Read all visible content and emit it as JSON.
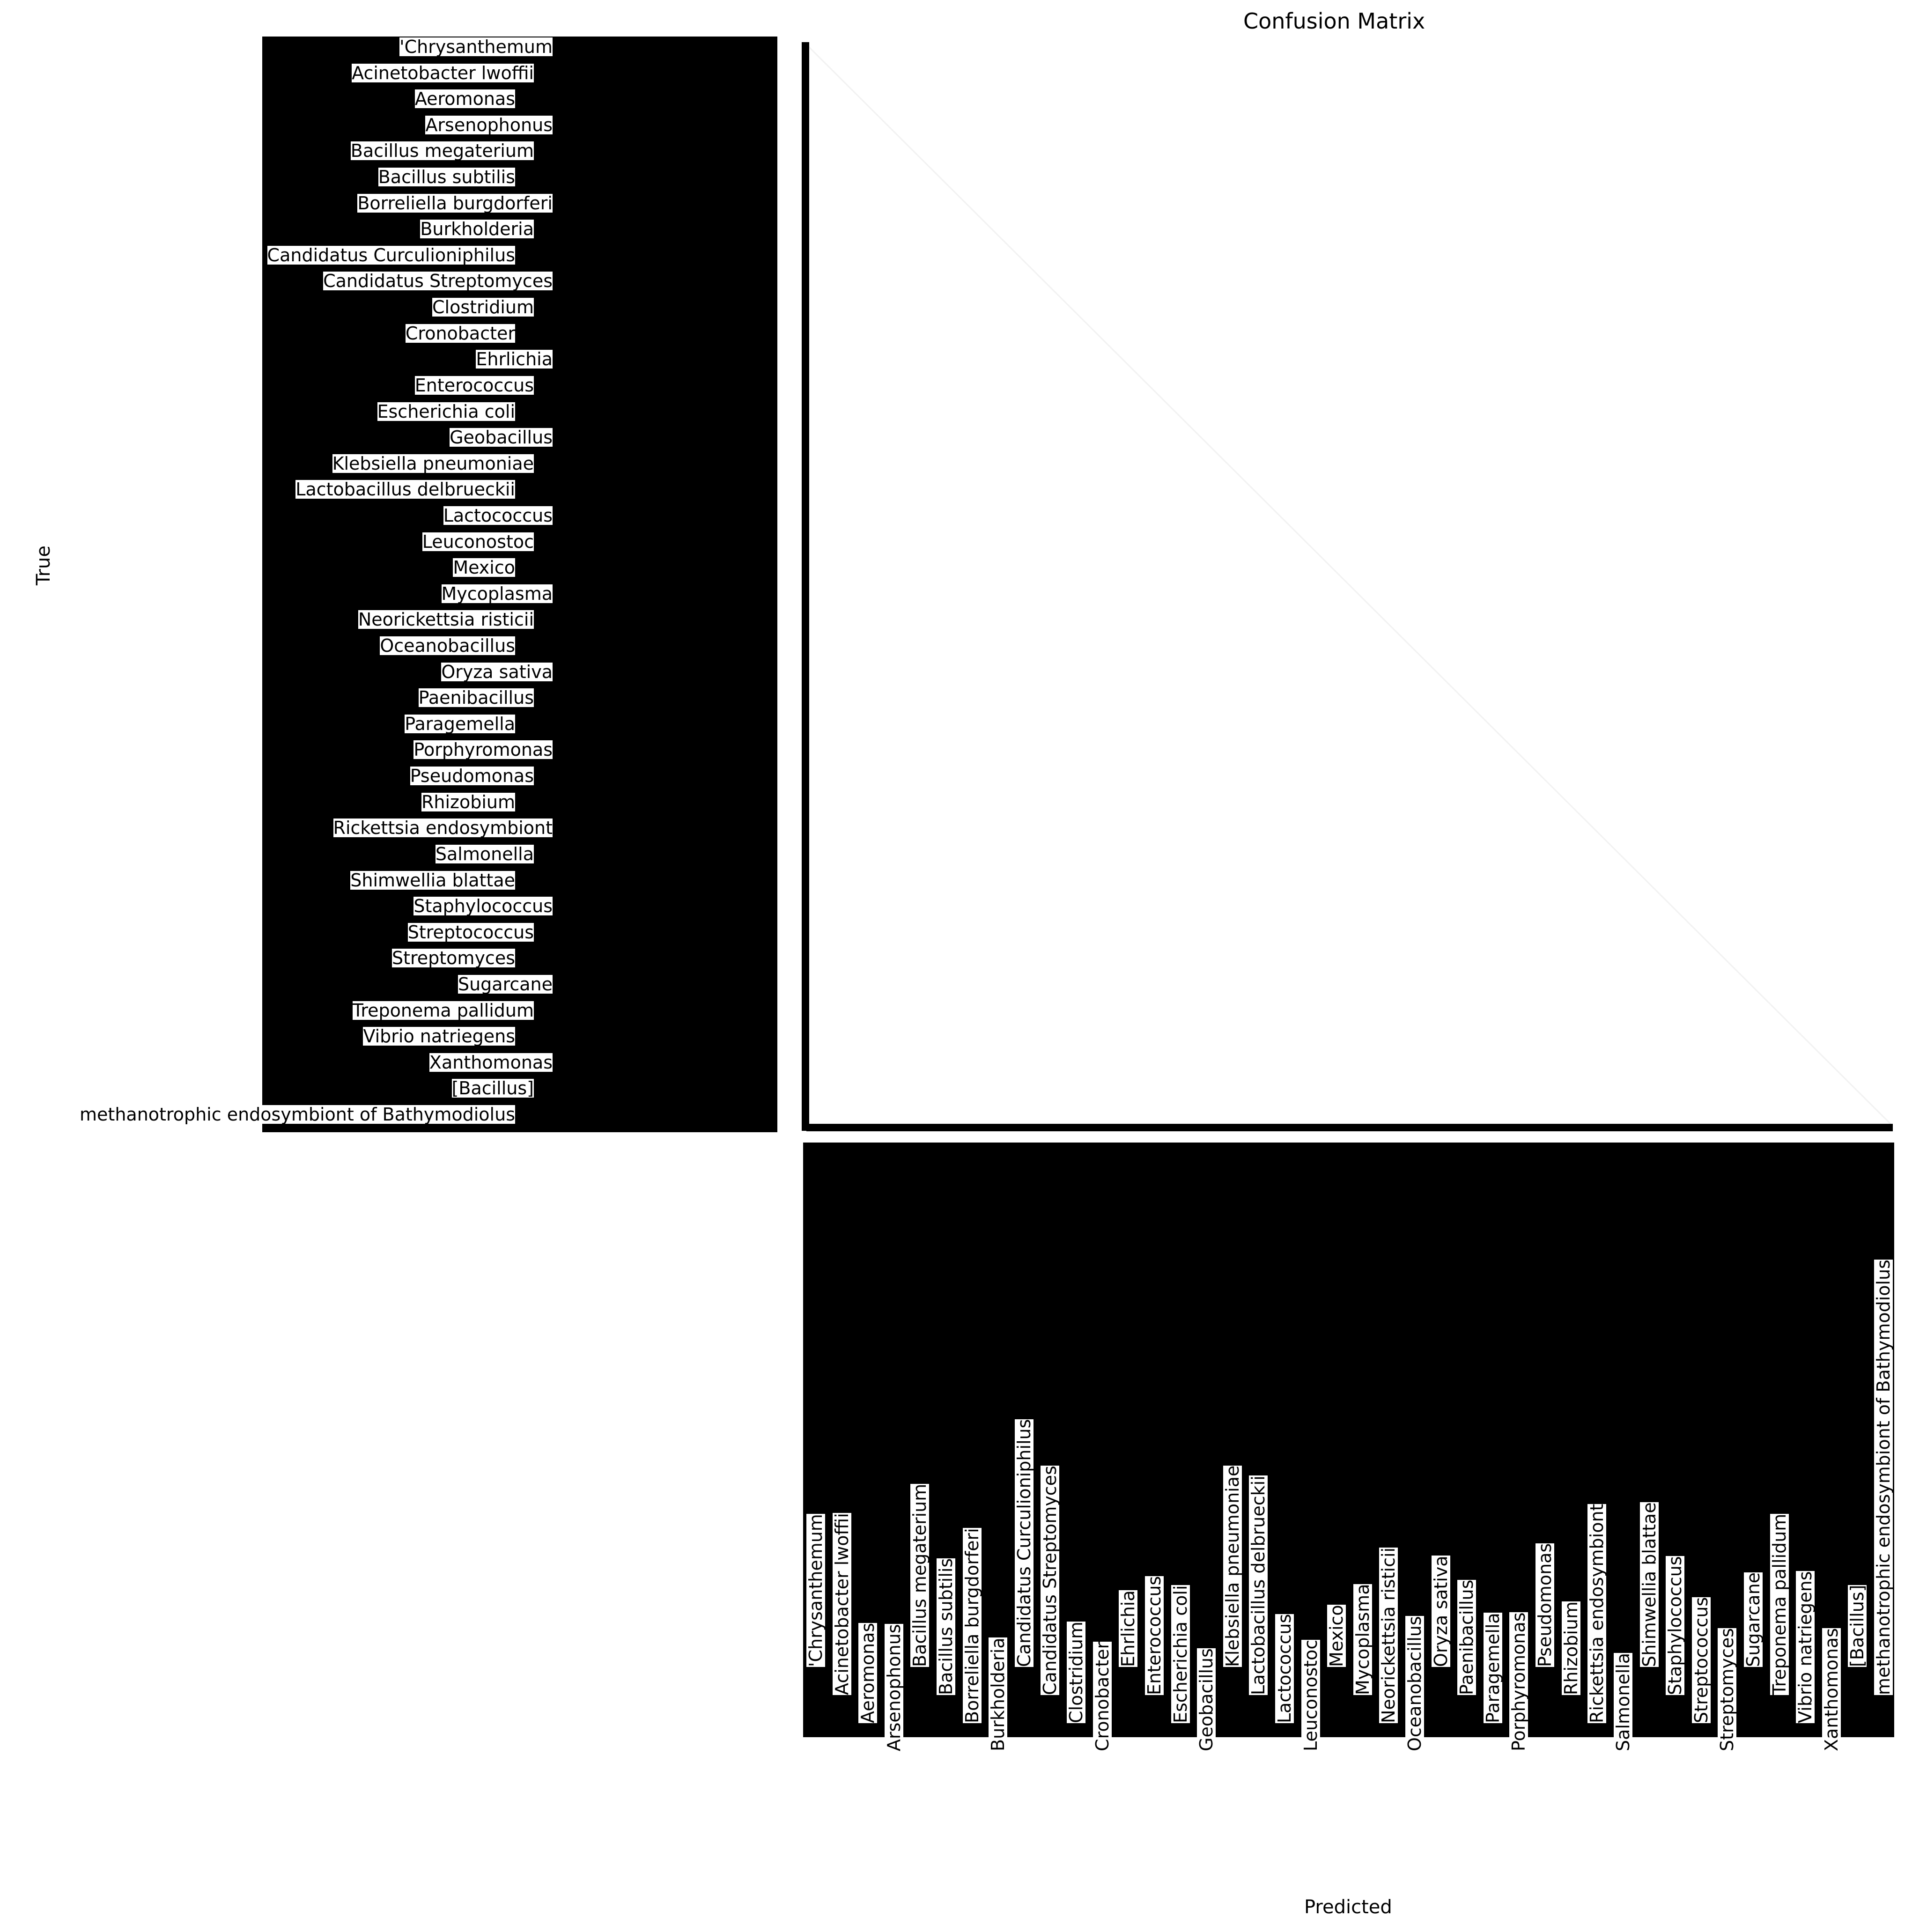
{
  "chart_data": {
    "type": "heatmap",
    "title": "Confusion Matrix",
    "xlabel": "Predicted",
    "ylabel": "True",
    "colormap": "white-to-black",
    "values_shown": "diagonal only, near-zero intensity; off-diagonal 0",
    "visible_y_tick_labels": [
      "'Chrysanthemum",
      "Acinetobacter lwoffii",
      "Aeromonas",
      "Arsenophonus",
      "Bacillus megaterium",
      "Bacillus subtilis",
      "Borreliella burgdorferi",
      "Burkholderia",
      "Candidatus Curculioniphilus",
      "Candidatus Streptomyces",
      "Clostridium",
      "Cronobacter",
      "Ehrlichia",
      "Enterococcus",
      "Escherichia coli",
      "Geobacillus",
      "Klebsiella pneumoniae",
      "Lactobacillus delbrueckii",
      "Lactococcus",
      "Leuconostoc",
      "Mexico",
      "Mycoplasma",
      "Neorickettsia risticii",
      "Oceanobacillus",
      "Oryza sativa",
      "Paenibacillus",
      "Paragemella",
      "Porphyromonas",
      "Pseudomonas",
      "Rhizobium",
      "Rickettsia endosymbiont",
      "Salmonella",
      "Shimwellia blattae",
      "Staphylococcus",
      "Streptococcus",
      "Streptomyces",
      "Sugarcane",
      "Treponema pallidum",
      "Vibrio natriegens",
      "Xanthomonas",
      "[Bacillus]",
      "methanotrophic endosymbiont of Bathymodiolus"
    ]
  }
}
